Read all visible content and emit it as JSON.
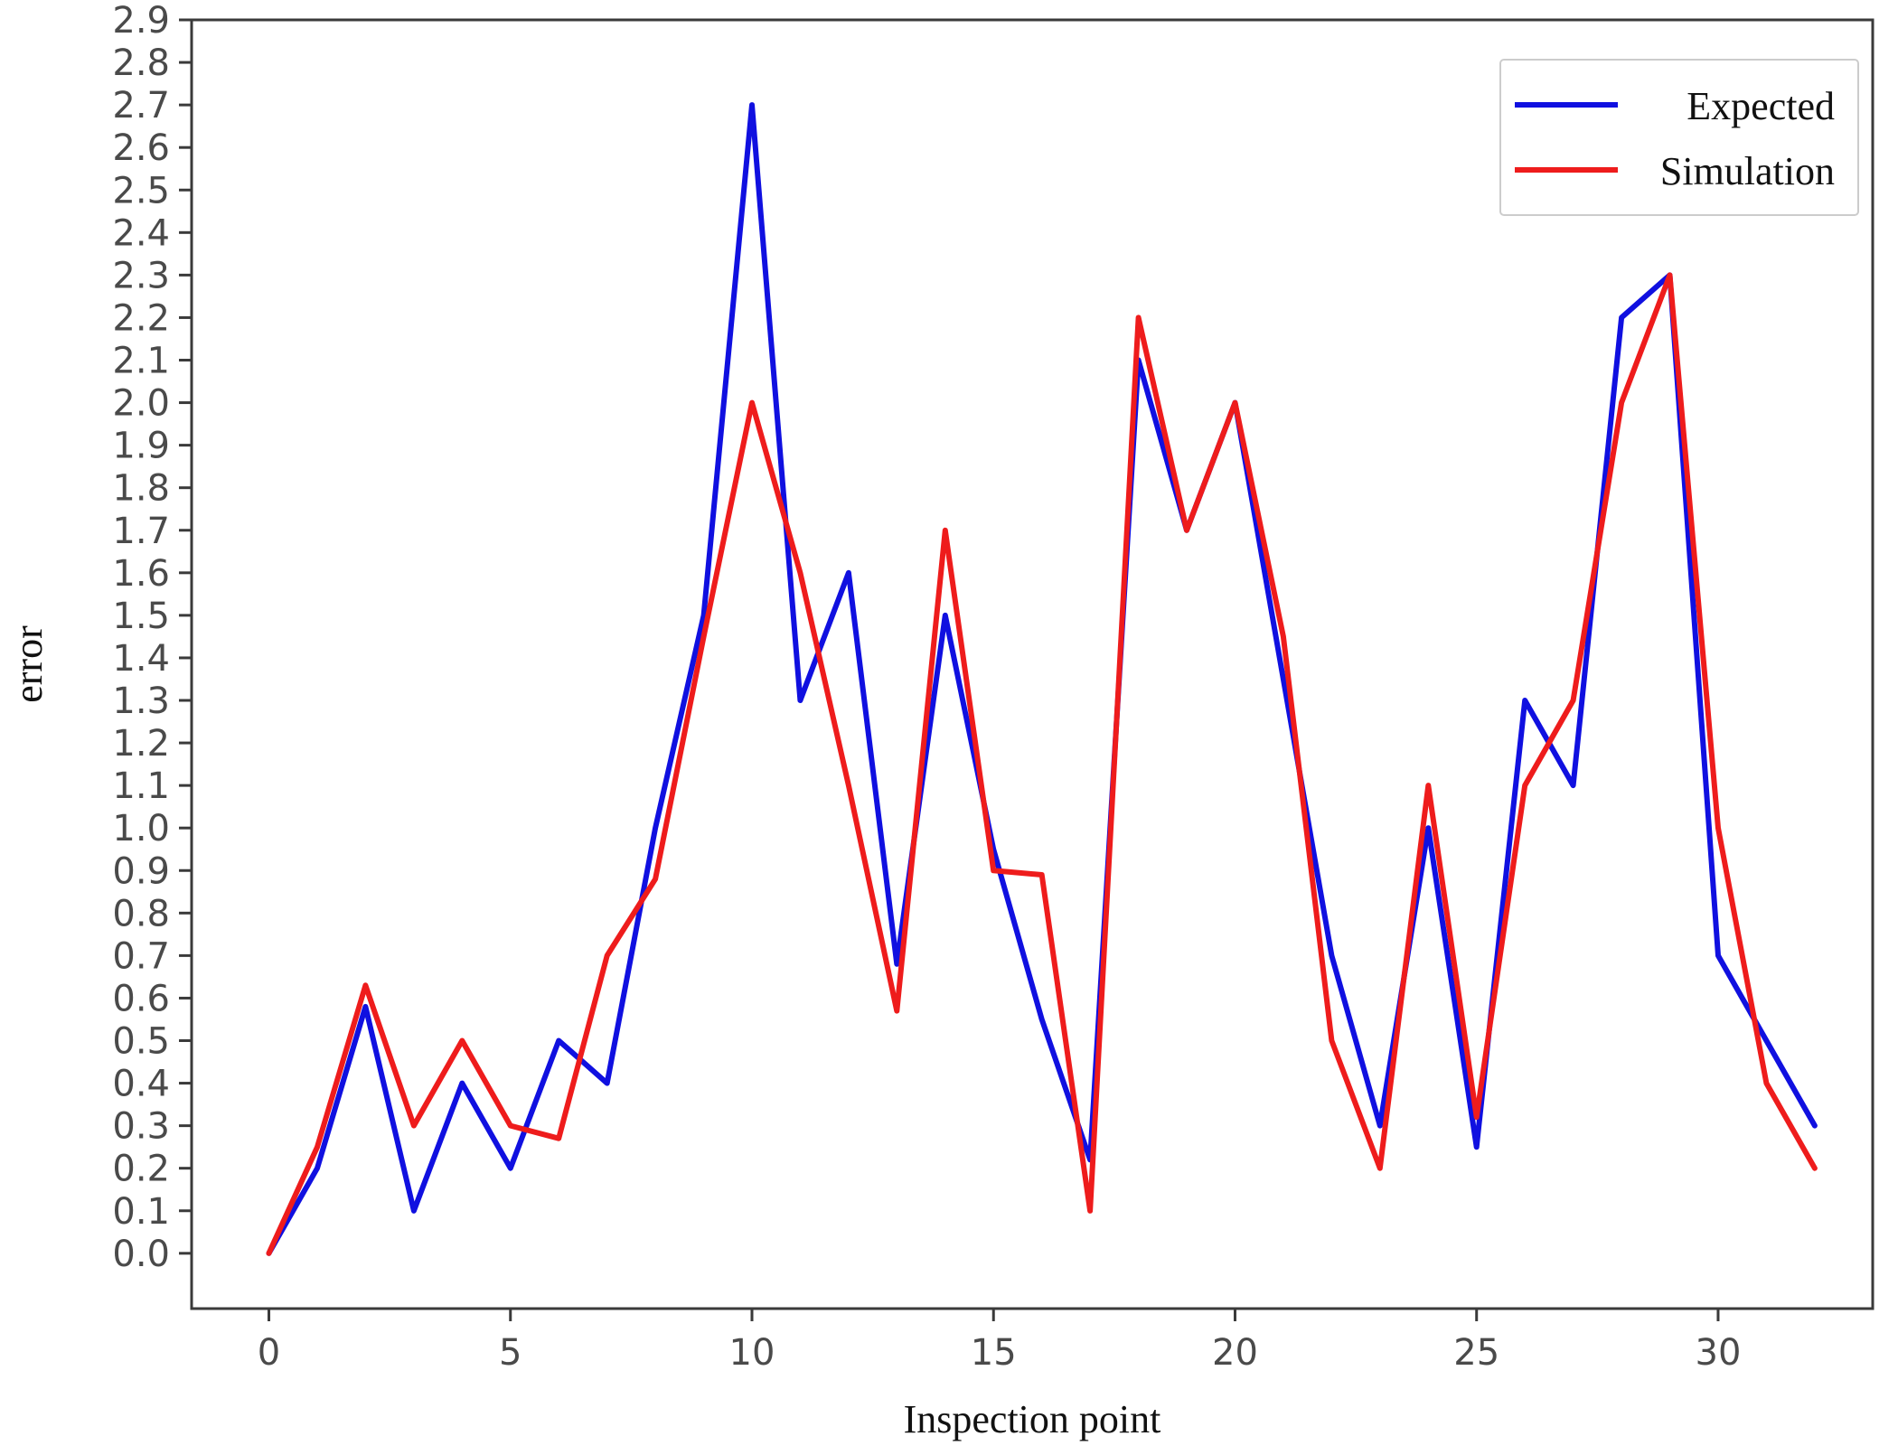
{
  "chart_data": {
    "type": "line",
    "xlabel": "Inspection point",
    "ylabel": "error",
    "xlim": [
      -1.6,
      33.2
    ],
    "ylim": [
      -0.13,
      2.9
    ],
    "xticks": [
      0,
      5,
      10,
      15,
      20,
      25,
      30
    ],
    "xtick_labels": [
      "0",
      "5",
      "10",
      "15",
      "20",
      "25",
      "30"
    ],
    "yticks": [
      0.0,
      0.1,
      0.2,
      0.3,
      0.4,
      0.5,
      0.6,
      0.7,
      0.8,
      0.9,
      1.0,
      1.1,
      1.2,
      1.3,
      1.4,
      1.5,
      1.6,
      1.7,
      1.8,
      1.9,
      2.0,
      2.1,
      2.2,
      2.3,
      2.4,
      2.5,
      2.6,
      2.7,
      2.8,
      2.9
    ],
    "ytick_labels": [
      "0.0",
      "0.1",
      "0.2",
      "0.3",
      "0.4",
      "0.5",
      "0.6",
      "0.7",
      "0.8",
      "0.9",
      "1.0",
      "1.1",
      "1.2",
      "1.3",
      "1.4",
      "1.5",
      "1.6",
      "1.7",
      "1.8",
      "1.9",
      "2.0",
      "2.1",
      "2.2",
      "2.3",
      "2.4",
      "2.5",
      "2.6",
      "2.7",
      "2.8",
      "2.9"
    ],
    "grid": false,
    "legend": "top-right",
    "x": [
      0,
      1,
      2,
      3,
      4,
      5,
      6,
      7,
      8,
      9,
      10,
      11,
      12,
      13,
      14,
      15,
      16,
      17,
      18,
      19,
      20,
      21,
      22,
      23,
      24,
      25,
      26,
      27,
      28,
      29,
      30,
      31,
      32
    ],
    "series": [
      {
        "name": "Expected",
        "color": "#1010e0",
        "values": [
          0.0,
          0.2,
          0.58,
          0.1,
          0.4,
          0.2,
          0.5,
          0.4,
          1.0,
          1.5,
          2.7,
          1.3,
          1.6,
          0.68,
          1.5,
          0.95,
          0.55,
          0.22,
          2.1,
          1.7,
          2.0,
          1.35,
          0.7,
          0.3,
          1.0,
          0.25,
          1.3,
          1.1,
          2.2,
          2.3,
          0.7,
          0.5,
          0.3
        ]
      },
      {
        "name": "Simulation",
        "color": "#ee1c1c",
        "values": [
          0.0,
          0.25,
          0.63,
          0.3,
          0.5,
          0.3,
          0.27,
          0.7,
          0.88,
          1.45,
          2.0,
          1.6,
          1.1,
          0.57,
          1.7,
          0.9,
          0.89,
          0.1,
          2.2,
          1.7,
          2.0,
          1.45,
          0.5,
          0.2,
          1.1,
          0.32,
          1.1,
          1.3,
          2.0,
          2.3,
          1.0,
          0.4,
          0.2
        ]
      }
    ]
  }
}
